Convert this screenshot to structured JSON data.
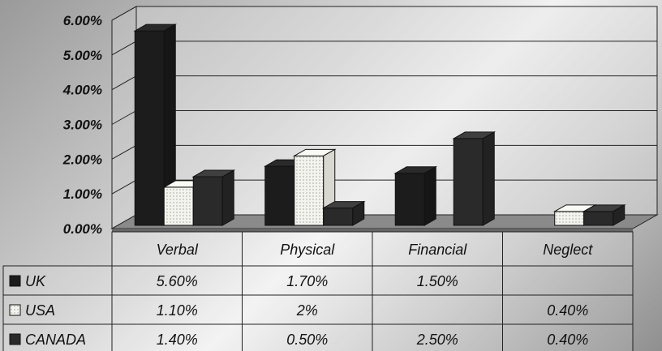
{
  "chart_data": {
    "type": "bar",
    "categories": [
      "Verbal",
      "Physical",
      "Financial",
      "Neglect"
    ],
    "series": [
      {
        "name": "UK",
        "values": [
          5.6,
          1.7,
          1.5,
          null
        ],
        "labels": [
          "5.60%",
          "1.70%",
          "1.50%",
          ""
        ]
      },
      {
        "name": "USA",
        "values": [
          1.1,
          2.0,
          null,
          0.4
        ],
        "labels": [
          "1.10%",
          "2%",
          "",
          "0.40%"
        ]
      },
      {
        "name": "CANADA",
        "values": [
          1.4,
          0.5,
          2.5,
          0.4
        ],
        "labels": [
          "1.40%",
          "0.50%",
          "2.50%",
          "0.40%"
        ]
      }
    ],
    "yticks": [
      "0.00%",
      "1.00%",
      "2.00%",
      "3.00%",
      "4.00%",
      "5.00%",
      "6.00%"
    ],
    "ylim": [
      0,
      6
    ],
    "grid": true,
    "legend": "data-table",
    "colors": {
      "UK": "#1c1c1c",
      "USA": "#f4f4ee",
      "CANADA": "#2a2a2a"
    }
  }
}
